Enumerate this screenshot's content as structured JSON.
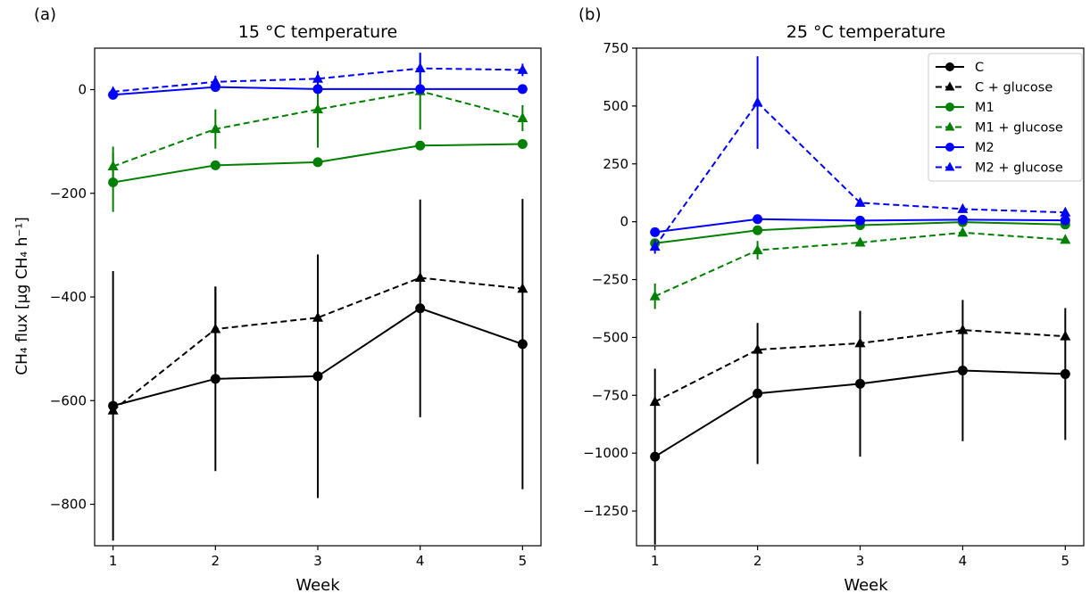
{
  "chart_data": [
    {
      "type": "line",
      "panel_label": "(a)",
      "title": "15  °C temperature",
      "xlabel": "Week",
      "ylabel": "CH₄ flux [μg CH₄ h⁻¹]",
      "x": [
        1,
        2,
        3,
        4,
        5
      ],
      "xlim": [
        0.82,
        5.18
      ],
      "ylim": [
        -880,
        80
      ],
      "yticks": [
        -800,
        -600,
        -400,
        -200,
        0
      ],
      "ytick_labels": [
        "−800",
        "−600",
        "−400",
        "−200",
        "0"
      ],
      "xtick_labels": [
        "1",
        "2",
        "3",
        "4",
        "5"
      ],
      "grid": false,
      "series": [
        {
          "name": "C",
          "color": "#000000",
          "marker": "circle",
          "dashed": false,
          "values": [
            -610,
            -558,
            -553,
            -422,
            -491
          ],
          "err": [
            260,
            178,
            235,
            210,
            280
          ]
        },
        {
          "name": "C + glucose",
          "color": "#000000",
          "marker": "triangle",
          "dashed": true,
          "values": [
            -619,
            -462,
            -440,
            -363,
            -384
          ],
          "err": [
            0,
            82,
            0,
            0,
            0
          ]
        },
        {
          "name": "M1",
          "color": "#008000",
          "marker": "circle",
          "dashed": false,
          "values": [
            -179,
            -146,
            -140,
            -108,
            -105
          ],
          "err": [
            57,
            0,
            0,
            0,
            0
          ]
        },
        {
          "name": "M1 + glucose",
          "color": "#008000",
          "marker": "triangle",
          "dashed": true,
          "values": [
            -148,
            -76,
            -38,
            -3,
            -55
          ],
          "err": [
            38,
            38,
            74,
            74,
            25
          ]
        },
        {
          "name": "M2",
          "color": "#0000ff",
          "marker": "circle",
          "dashed": false,
          "values": [
            -10,
            5,
            1,
            1,
            1
          ],
          "err": [
            0,
            0,
            0,
            0,
            0
          ]
        },
        {
          "name": "M2 + glucose",
          "color": "#0000ff",
          "marker": "triangle",
          "dashed": true,
          "values": [
            -4,
            15,
            21,
            41,
            38
          ],
          "err": [
            0,
            12,
            14,
            30,
            12
          ]
        }
      ]
    },
    {
      "type": "line",
      "panel_label": "(b)",
      "title": "25  °C temperature",
      "xlabel": "Week",
      "ylabel": "",
      "x": [
        1,
        2,
        3,
        4,
        5
      ],
      "xlim": [
        0.82,
        5.18
      ],
      "ylim": [
        -1400,
        750
      ],
      "yticks": [
        -1250,
        -1000,
        -750,
        -500,
        -250,
        0,
        250,
        500,
        750
      ],
      "ytick_labels": [
        "−1250",
        "−1000",
        "−750",
        "−500",
        "−250",
        "0",
        "250",
        "500",
        "750"
      ],
      "xtick_labels": [
        "1",
        "2",
        "3",
        "4",
        "5"
      ],
      "grid": false,
      "legend_position": "top-right",
      "series": [
        {
          "name": "C",
          "color": "#000000",
          "marker": "circle",
          "dashed": false,
          "values": [
            -1015,
            -742,
            -700,
            -643,
            -658
          ],
          "err": [
            380,
            305,
            315,
            305,
            285
          ]
        },
        {
          "name": "C + glucose",
          "color": "#000000",
          "marker": "triangle",
          "dashed": true,
          "values": [
            -778,
            -553,
            -525,
            -468,
            -495
          ],
          "err": [
            0,
            0,
            0,
            0,
            0
          ]
        },
        {
          "name": "M1",
          "color": "#008000",
          "marker": "circle",
          "dashed": false,
          "values": [
            -93,
            -37,
            -15,
            -2,
            -12
          ],
          "err": [
            0,
            0,
            0,
            0,
            0
          ]
        },
        {
          "name": "M1 + glucose",
          "color": "#008000",
          "marker": "triangle",
          "dashed": true,
          "values": [
            -322,
            -123,
            -90,
            -47,
            -78
          ],
          "err": [
            55,
            40,
            0,
            0,
            0
          ]
        },
        {
          "name": "M2",
          "color": "#0000ff",
          "marker": "circle",
          "dashed": false,
          "values": [
            -45,
            11,
            5,
            9,
            6
          ],
          "err": [
            0,
            0,
            0,
            0,
            0
          ]
        },
        {
          "name": "M2 + glucose",
          "color": "#0000ff",
          "marker": "triangle",
          "dashed": true,
          "values": [
            -108,
            515,
            82,
            55,
            40
          ],
          "err": [
            30,
            200,
            0,
            0,
            0
          ]
        }
      ]
    }
  ]
}
